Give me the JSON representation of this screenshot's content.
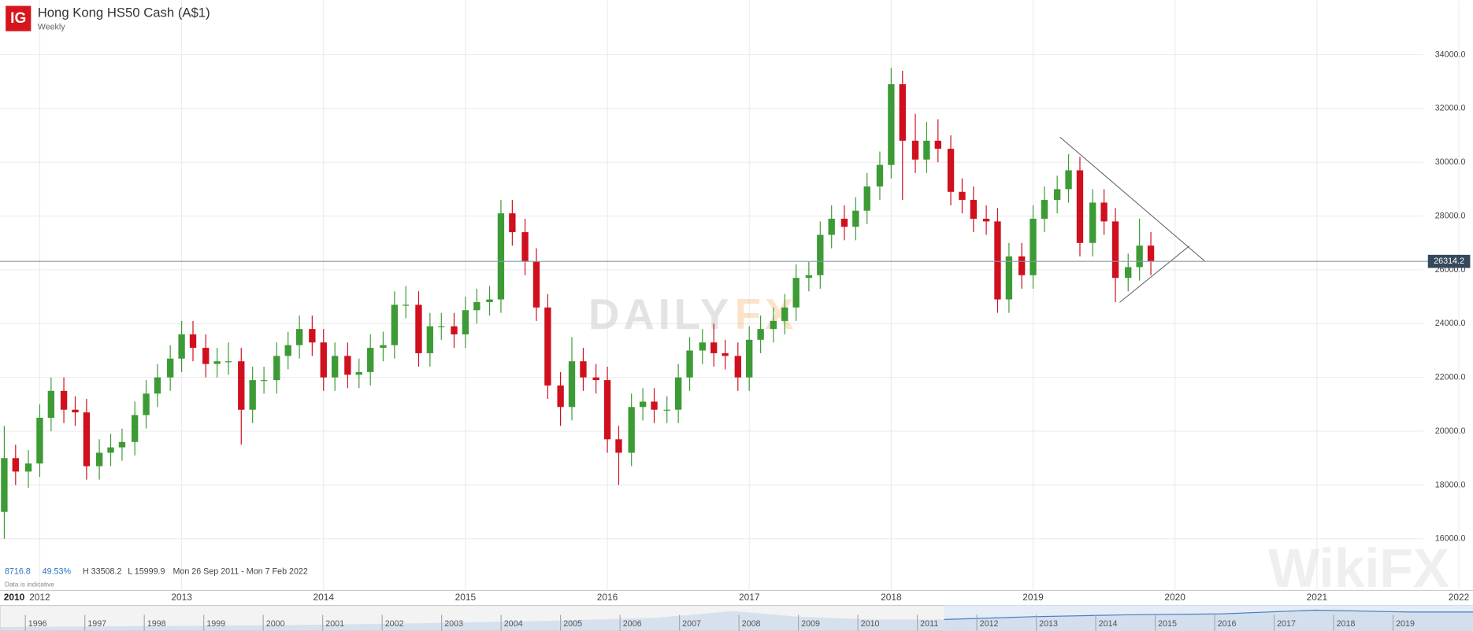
{
  "chart_data": {
    "type": "candlestick",
    "logo": "IG",
    "title": "Hong Kong HS50 Cash (A$1)",
    "subtitle": "Weekly",
    "up_color": "#3d9b35",
    "down_color": "#d0101e",
    "grid": true,
    "xlim": [
      2011.72,
      2022.1
    ],
    "xticks": [
      2012,
      2013,
      2014,
      2015,
      2016,
      2017,
      2018,
      2019,
      2020,
      2021,
      2022
    ],
    "x_start_label": "2010",
    "ylim": [
      14116,
      36023
    ],
    "yticks": [
      {
        "value": 16000,
        "label": "16000.0"
      },
      {
        "value": 18000,
        "label": "18000.0"
      },
      {
        "value": 20000,
        "label": "20000.0"
      },
      {
        "value": 22000,
        "label": "22000.0"
      },
      {
        "value": 24000,
        "label": "24000.0"
      },
      {
        "value": 26000,
        "label": "26000.0"
      },
      {
        "value": 28000,
        "label": "28000.0"
      },
      {
        "value": 30000,
        "label": "30000.0"
      },
      {
        "value": 32000,
        "label": "32000.0"
      },
      {
        "value": 34000,
        "label": "34000.0"
      }
    ],
    "last_price": 26314.2,
    "x": [
      2011.75,
      2011.83,
      2011.92,
      2012.0,
      2012.08,
      2012.17,
      2012.25,
      2012.33,
      2012.42,
      2012.5,
      2012.58,
      2012.67,
      2012.75,
      2012.83,
      2012.92,
      2013.0,
      2013.08,
      2013.17,
      2013.25,
      2013.33,
      2013.42,
      2013.5,
      2013.58,
      2013.67,
      2013.75,
      2013.83,
      2013.92,
      2014.0,
      2014.08,
      2014.17,
      2014.25,
      2014.33,
      2014.42,
      2014.5,
      2014.58,
      2014.67,
      2014.75,
      2014.83,
      2014.92,
      2015.0,
      2015.08,
      2015.17,
      2015.25,
      2015.33,
      2015.42,
      2015.5,
      2015.58,
      2015.67,
      2015.75,
      2015.83,
      2015.92,
      2016.0,
      2016.08,
      2016.17,
      2016.25,
      2016.33,
      2016.42,
      2016.5,
      2016.58,
      2016.67,
      2016.75,
      2016.83,
      2016.92,
      2017.0,
      2017.08,
      2017.17,
      2017.25,
      2017.33,
      2017.42,
      2017.5,
      2017.58,
      2017.67,
      2017.75,
      2017.83,
      2017.92,
      2018.0,
      2018.08,
      2018.17,
      2018.25,
      2018.33,
      2018.42,
      2018.5,
      2018.58,
      2018.67,
      2018.75,
      2018.83,
      2018.92,
      2019.0,
      2019.08,
      2019.17,
      2019.25,
      2019.33,
      2019.42,
      2019.5,
      2019.58,
      2019.67,
      2019.75,
      2019.83
    ],
    "open": [
      17000,
      19000,
      18500,
      18800,
      20500,
      21500,
      20800,
      20700,
      18700,
      19200,
      19400,
      19600,
      20600,
      21400,
      22000,
      22700,
      23600,
      23100,
      22500,
      22600,
      22600,
      20800,
      21900,
      21900,
      22800,
      23200,
      23800,
      23300,
      22000,
      22800,
      22100,
      22200,
      23100,
      23200,
      24700,
      24700,
      22900,
      23900,
      23900,
      23600,
      24500,
      24800,
      24900,
      28100,
      27400,
      26300,
      24600,
      21700,
      20900,
      22600,
      22000,
      21900,
      19700,
      19200,
      20900,
      21100,
      20800,
      20800,
      22000,
      23000,
      23300,
      22900,
      22800,
      22000,
      23400,
      23800,
      24100,
      24600,
      25700,
      25800,
      27300,
      27900,
      27600,
      28200,
      29100,
      29900,
      32900,
      30800,
      30100,
      30800,
      30500,
      28900,
      28600,
      27900,
      27800,
      24900,
      26500,
      25800,
      27900,
      28600,
      29000,
      29700,
      27000,
      28500,
      27800,
      25700,
      26100,
      26900
    ],
    "high": [
      20200,
      19500,
      19300,
      21000,
      22000,
      22000,
      21300,
      21200,
      19700,
      19900,
      20100,
      21100,
      21900,
      22500,
      23200,
      24100,
      24100,
      23600,
      23100,
      23300,
      23100,
      22400,
      22400,
      23300,
      23700,
      24300,
      24300,
      23800,
      23300,
      23300,
      22700,
      23600,
      23700,
      25200,
      25400,
      25200,
      24400,
      24400,
      24400,
      25000,
      25300,
      25400,
      28600,
      28600,
      27900,
      26800,
      25100,
      22200,
      23500,
      23100,
      22500,
      22400,
      20200,
      21400,
      21600,
      21600,
      21300,
      22500,
      23500,
      23800,
      24000,
      23400,
      23300,
      23900,
      24300,
      24600,
      25100,
      26200,
      26300,
      27800,
      28400,
      28400,
      28700,
      29600,
      30400,
      33508.2,
      33400,
      31800,
      31500,
      31600,
      31000,
      29400,
      29100,
      28400,
      28300,
      27000,
      27000,
      28400,
      29100,
      29500,
      30300,
      30200,
      29000,
      29000,
      28300,
      26600,
      27900,
      27400
    ],
    "low": [
      15999.9,
      18000,
      17900,
      18300,
      20000,
      20300,
      20200,
      18200,
      18200,
      18700,
      18900,
      19100,
      20100,
      20900,
      21500,
      22200,
      22600,
      22000,
      22000,
      22100,
      19500,
      20300,
      21400,
      21400,
      22300,
      22700,
      22800,
      21500,
      21500,
      21600,
      21600,
      21700,
      22600,
      22700,
      24200,
      22400,
      22400,
      23400,
      23100,
      23100,
      24000,
      24300,
      24400,
      26900,
      25800,
      24100,
      21200,
      20200,
      20400,
      21500,
      21400,
      19200,
      18000,
      18700,
      20400,
      20300,
      20300,
      20300,
      21500,
      22500,
      22400,
      22300,
      21500,
      21500,
      22900,
      23300,
      23600,
      24100,
      25200,
      25300,
      26800,
      27100,
      27100,
      27700,
      28600,
      29400,
      28600,
      29600,
      29600,
      30000,
      28400,
      28100,
      27400,
      27300,
      24400,
      24400,
      25300,
      25300,
      27400,
      28100,
      28500,
      26500,
      26500,
      27300,
      24800,
      25200,
      25600,
      25800
    ],
    "close": [
      19000,
      18500,
      18800,
      20500,
      21500,
      20800,
      20700,
      18700,
      19200,
      19400,
      19600,
      20600,
      21400,
      22000,
      22700,
      23600,
      23100,
      22500,
      22600,
      22600,
      20800,
      21900,
      21900,
      22800,
      23200,
      23800,
      23300,
      22000,
      22800,
      22100,
      22200,
      23100,
      23200,
      24700,
      24700,
      22900,
      23900,
      23900,
      23600,
      24500,
      24800,
      24900,
      28100,
      27400,
      26300,
      24600,
      21700,
      20900,
      22600,
      22000,
      21900,
      19700,
      19200,
      20900,
      21100,
      20800,
      20800,
      22000,
      23000,
      23300,
      22900,
      22800,
      22000,
      23400,
      23800,
      24100,
      24600,
      25700,
      25800,
      27300,
      27900,
      27600,
      28200,
      29100,
      29900,
      32900,
      30800,
      30100,
      30800,
      30500,
      28900,
      28600,
      27900,
      27800,
      24900,
      26500,
      25800,
      27900,
      28600,
      29000,
      29700,
      27000,
      28500,
      27800,
      25700,
      26100,
      26900,
      26314.2
    ],
    "trendlines": [
      {
        "x": [
          2019.19,
          2020.21
        ],
        "y": [
          30930,
          26325
        ]
      },
      {
        "x": [
          2019.61,
          2020.1
        ],
        "y": [
          24790,
          26884
        ]
      }
    ],
    "stats": {
      "change": 8716.8,
      "change_pct": {
        "value": 49.53,
        "label": "49.53%"
      },
      "high_label": "H 33508.2",
      "low_label": "L 15999.9",
      "period": "Mon 26 Sep 2011 - Mon 7 Feb 2022",
      "note": "Data is indicative"
    },
    "watermark": {
      "part1": "DAILY",
      "part2": "FX",
      "brand": "WikiFX"
    },
    "navigator": {
      "labels": [
        "1996",
        "1997",
        "1998",
        "1999",
        "2000",
        "2001",
        "2002",
        "2003",
        "2004",
        "2005",
        "2006",
        "2007",
        "2008",
        "2009",
        "2010",
        "2011",
        "2012",
        "2013",
        "2014",
        "2015",
        "2016",
        "2017",
        "2018",
        "2019"
      ]
    }
  }
}
